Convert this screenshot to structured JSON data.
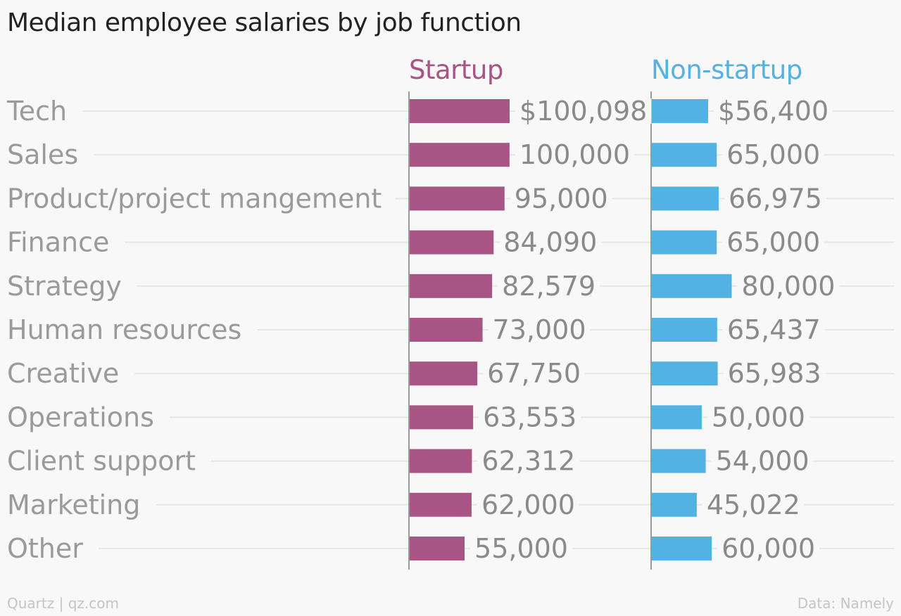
{
  "chart_data": {
    "type": "bar",
    "orientation": "horizontal",
    "title": "Median employee salaries by job function",
    "categories": [
      "Tech",
      "Sales",
      "Product/project mangement",
      "Finance",
      "Strategy",
      "Human resources",
      "Creative",
      "Operations",
      "Client support",
      "Marketing",
      "Other"
    ],
    "series": [
      {
        "name": "Startup",
        "color": "#a85484",
        "values": [
          100098,
          100000,
          95000,
          84090,
          82579,
          73000,
          67750,
          63553,
          62312,
          62000,
          55000
        ],
        "labels": [
          "$100,098",
          "100,000",
          "95,000",
          "84,090",
          "82,579",
          "73,000",
          "67,750",
          "63,553",
          "62,312",
          "62,000",
          "55,000"
        ]
      },
      {
        "name": "Non-startup",
        "color": "#51b2e3",
        "values": [
          56400,
          65000,
          66975,
          65000,
          80000,
          65437,
          65983,
          50000,
          54000,
          45022,
          60000
        ],
        "labels": [
          "$56,400",
          "65,000",
          "66,975",
          "65,000",
          "80,000",
          "65,437",
          "65,983",
          "50,000",
          "54,000",
          "45,022",
          "60,000"
        ]
      }
    ],
    "grid": true,
    "legend": "none"
  },
  "footer": {
    "source_left": "Quartz | qz.com",
    "source_right": "Data: Namely"
  }
}
